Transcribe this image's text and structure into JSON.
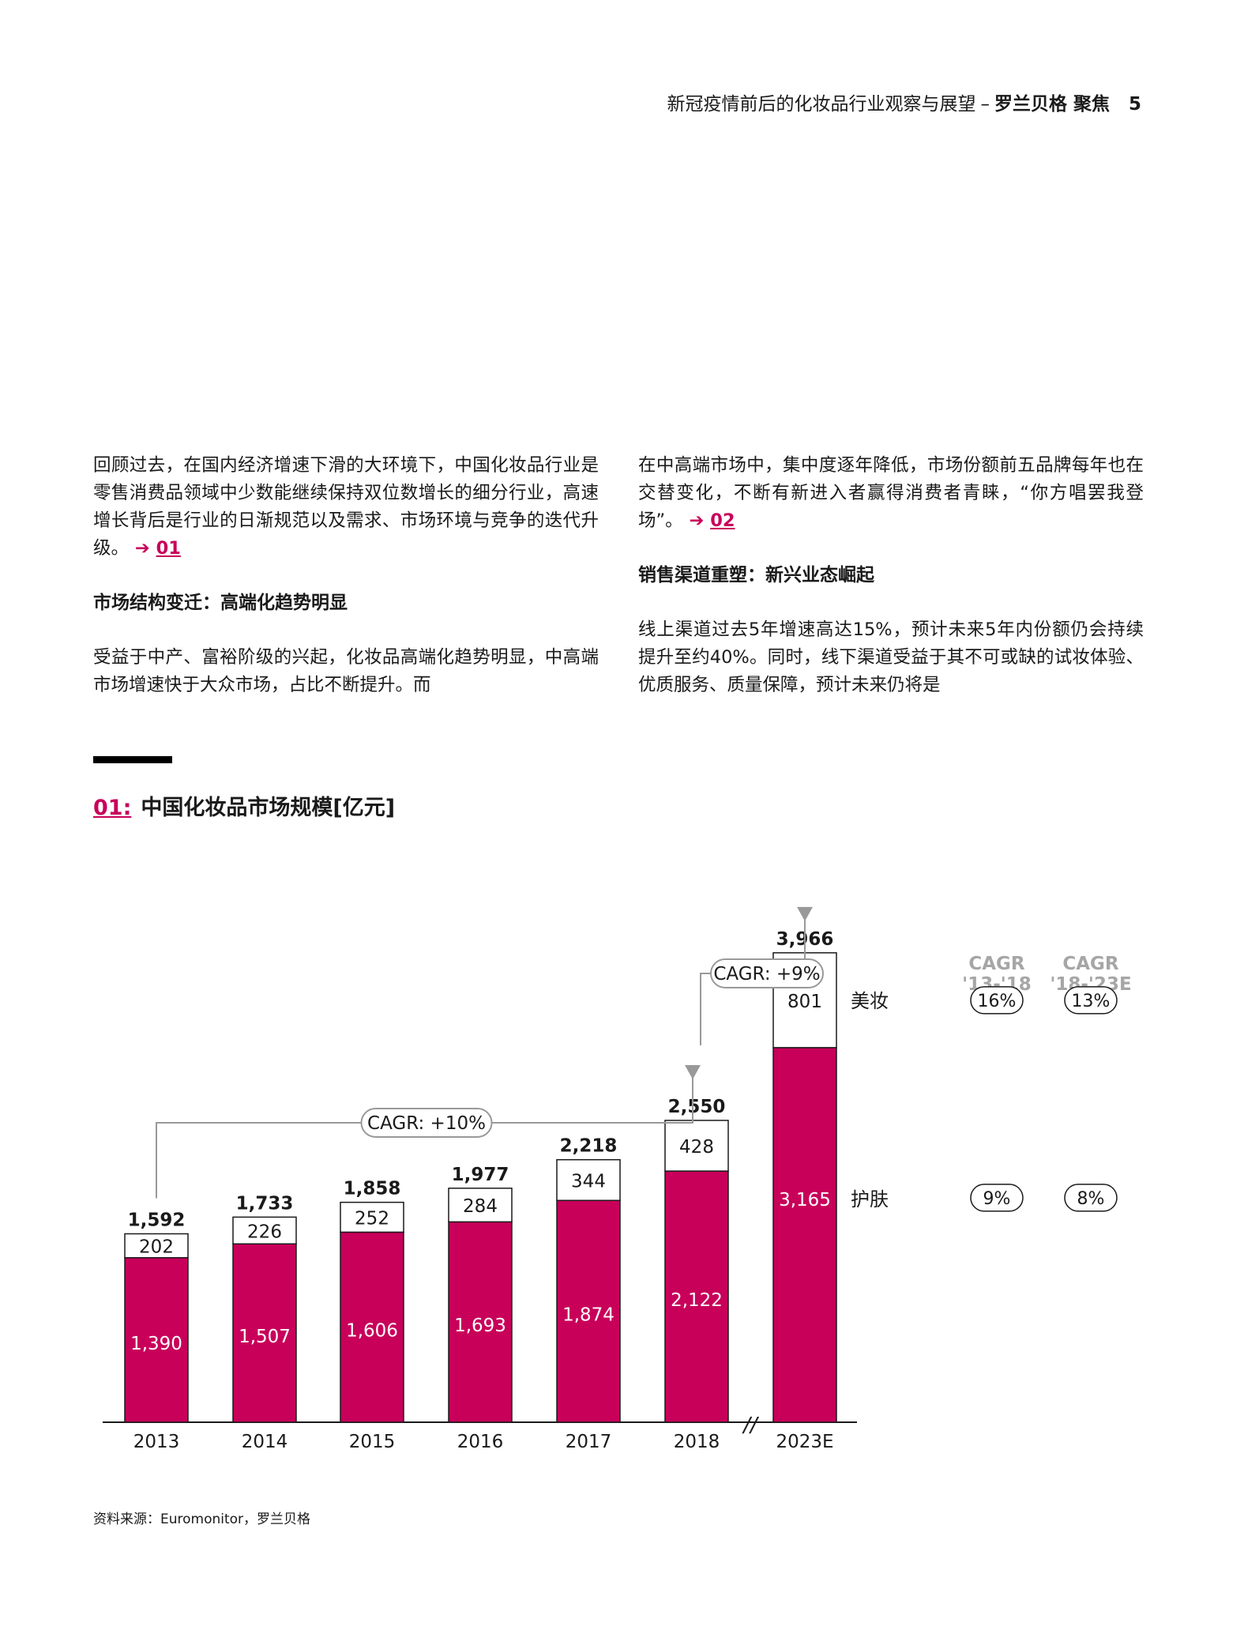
{
  "header": {
    "title": "新冠疫情前后的化妆品行业观察与展望",
    "dash": "–",
    "brand": "罗兰贝格 聚焦",
    "page": "5"
  },
  "left_column": {
    "p1": "回顾过去，在国内经济增速下滑的大环境下，中国化妆品行业是零售消费品领域中少数能继续保持双位数增长的细分行业，高速增长背后是行业的日渐规范以及需求、市场环境与竞争的迭代升级。",
    "p1_ref": "01",
    "heading": "市场结构变迁：高端化趋势明显",
    "p2": "受益于中产、富裕阶级的兴起，化妆品高端化趋势明显，中高端市场增速快于大众市场，占比不断提升。而"
  },
  "right_column": {
    "p1": "在中高端市场中，集中度逐年降低，市场份额前五品牌每年也在交替变化，不断有新进入者赢得消费者青睐，“你方唱罢我登场”。",
    "p1_ref": "02",
    "heading": "销售渠道重塑：新兴业态崛起",
    "p2": "线上渠道过去5年增速高达15%，预计未来5年内份额仍会持续提升至约40%。同时，线下渠道受益于其不可或缺的试妆体验、优质服务、质量保障，预计未来仍将是"
  },
  "ref_arrow": "➔",
  "chart_title": {
    "num": "01:",
    "text": "中国化妆品市场规模[亿元]"
  },
  "source": "资料来源：Euromonitor，罗兰贝格",
  "chart_data": {
    "type": "bar",
    "stacked": true,
    "categories": [
      "2013",
      "2014",
      "2015",
      "2016",
      "2017",
      "2018",
      "2023E"
    ],
    "series": [
      {
        "name": "护肤",
        "values": [
          1390,
          1507,
          1606,
          1693,
          1874,
          2122,
          3165
        ],
        "labels": [
          "1,390",
          "1,507",
          "1,606",
          "1,693",
          "1,874",
          "2,122",
          "3,165"
        ],
        "color": "#c8005a"
      },
      {
        "name": "美妆",
        "values": [
          202,
          226,
          252,
          284,
          344,
          428,
          801
        ],
        "labels": [
          "202",
          "226",
          "252",
          "284",
          "344",
          "428",
          "801"
        ],
        "color": "#ffffff"
      }
    ],
    "totals": [
      1592,
      1733,
      1858,
      1977,
      2218,
      2550,
      3966
    ],
    "total_labels": [
      "1,592",
      "1,733",
      "1,858",
      "1,977",
      "2,218",
      "2,550",
      "3,966"
    ],
    "axis_break_marker": "//",
    "cagr_arrows": [
      {
        "label": "CAGR: +10%",
        "from": "2013",
        "to": "2018"
      },
      {
        "label": "CAGR: +9%",
        "from": "2018",
        "to": "2023E"
      }
    ],
    "cagr_table": {
      "headers": [
        [
          "CAGR",
          "'13-'18"
        ],
        [
          "CAGR",
          "'18-'23E"
        ]
      ],
      "rows": [
        {
          "segment": "美妆",
          "values": [
            "16%",
            "13%"
          ]
        },
        {
          "segment": "护肤",
          "values": [
            "9%",
            "8%"
          ]
        }
      ]
    },
    "ylim": [
      0,
      4000
    ]
  }
}
